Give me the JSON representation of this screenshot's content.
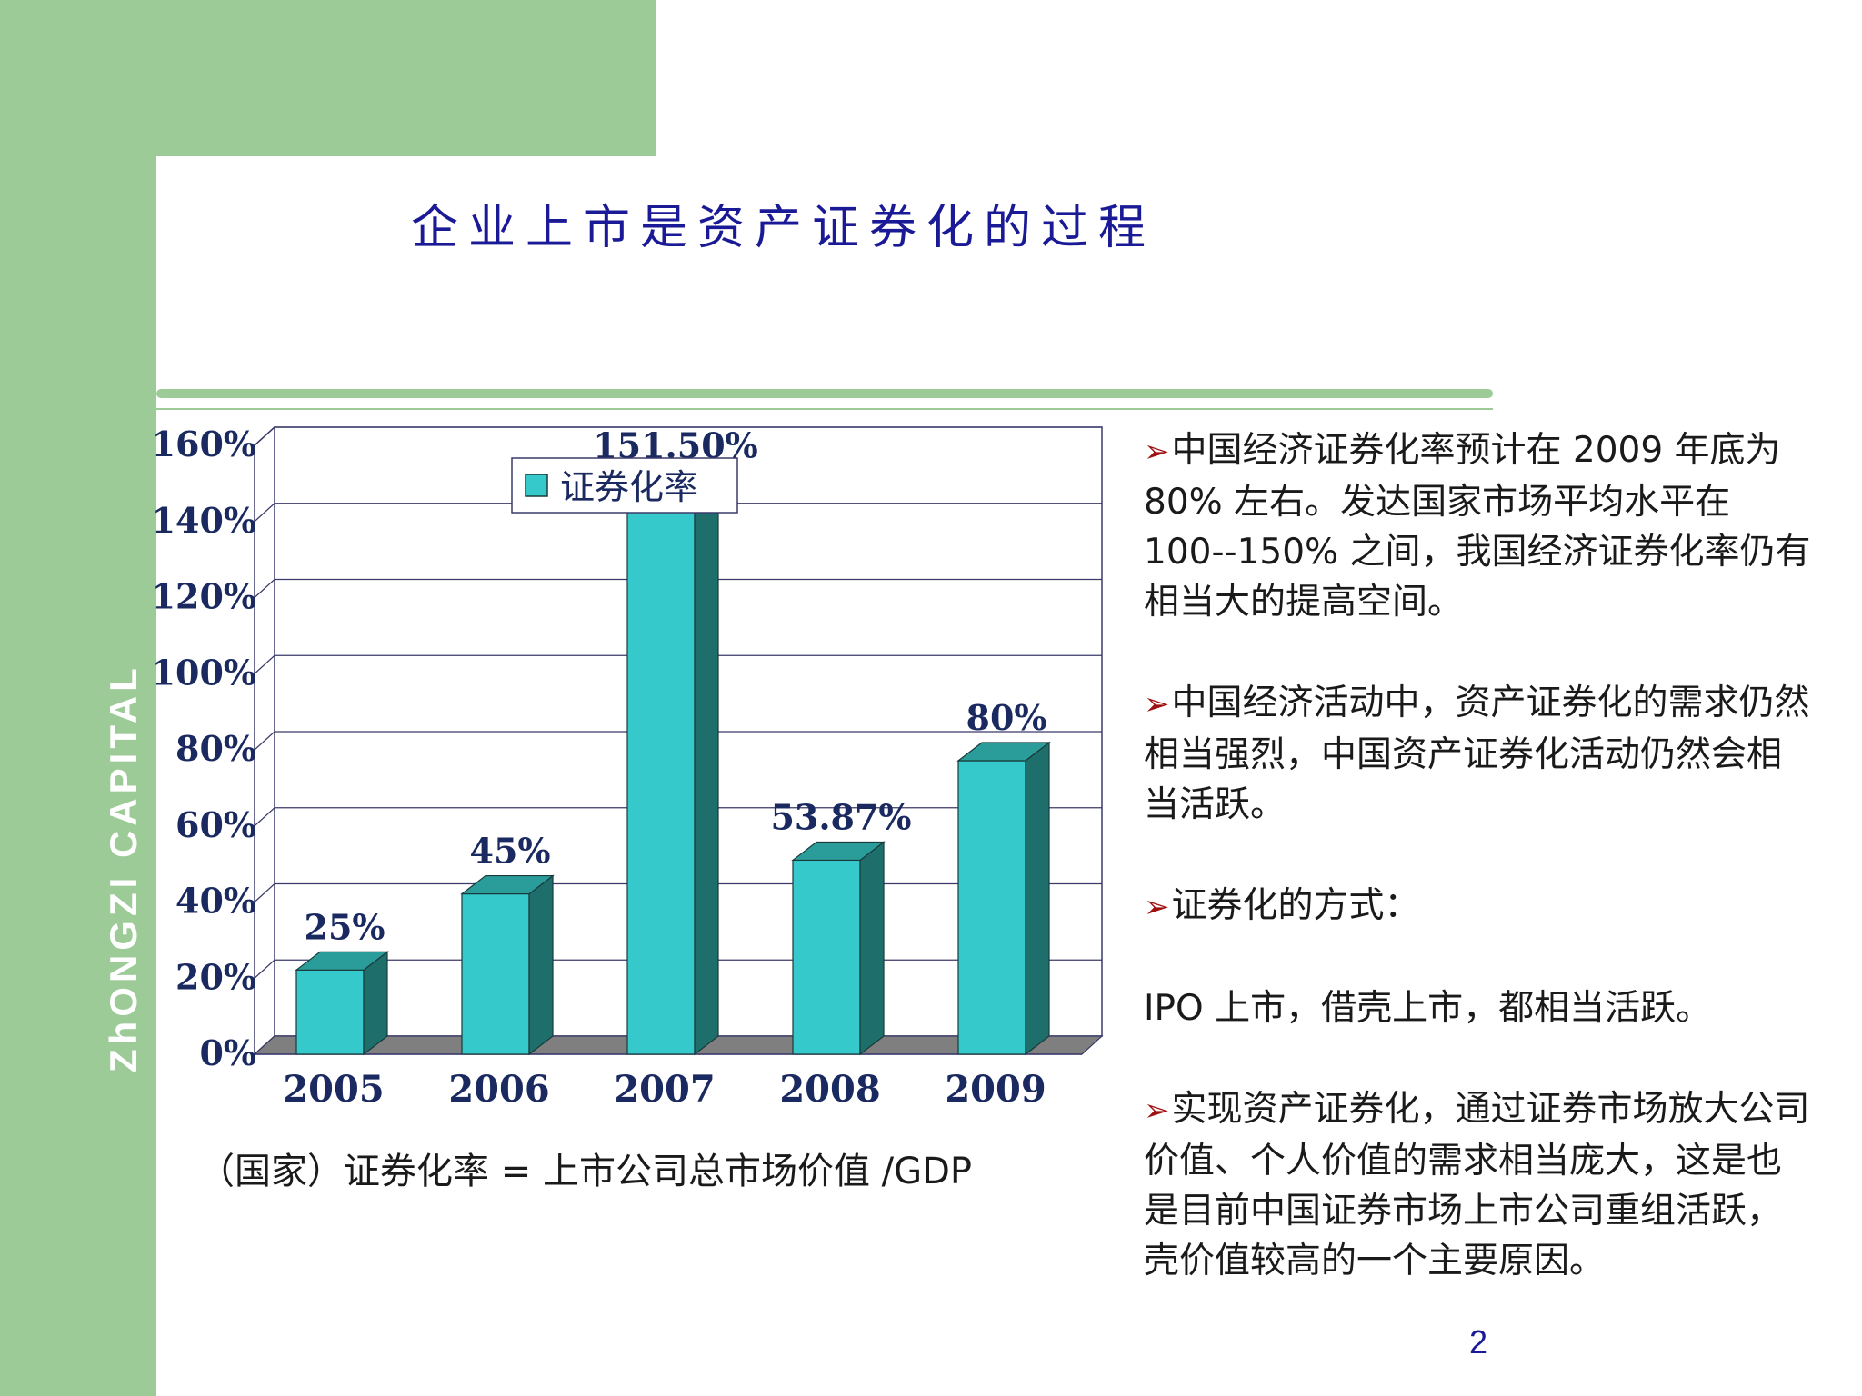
{
  "brand": "ZhONGZI CAPITAL",
  "title": "企业上市是资产证券化的过程",
  "formula": "（国家）证券化率 = 上市公司总市场价值 /GDP",
  "page_number": "2",
  "bullets": [
    {
      "arrow": "➢",
      "text": "中国经济证券化率预计在 2009 年底为 80% 左右。发达国家市场平均水平在 100--150% 之间，我国经济证券化率仍有相当大的提高空间。"
    },
    {
      "arrow": "➢",
      "text": "中国经济活动中，资产证券化的需求仍然相当强烈，中国资产证券化活动仍然会相当活跃。"
    },
    {
      "arrow": "➢",
      "text": "证券化的方式："
    },
    {
      "arrow": "",
      "text": "IPO 上市，借壳上市，都相当活跃。"
    },
    {
      "arrow": "➢",
      "text": "实现资产证券化，通过证券市场放大公司价值、个人价值的需求相当庞大，这是也是目前中国证券市场上市公司重组活跃，壳价值较高的一个主要原因。"
    }
  ],
  "chart_data": {
    "type": "bar",
    "categories": [
      "2005",
      "2006",
      "2007",
      "2008",
      "2009"
    ],
    "series": [
      {
        "name": "证券化率",
        "values": [
          25,
          45,
          151.5,
          53.87,
          80
        ],
        "labels": [
          "25%",
          "45%",
          "151.50%",
          "53.87%",
          "80%"
        ]
      }
    ],
    "ylim": [
      0,
      160
    ],
    "yticks": [
      "0%",
      "20%",
      "40%",
      "60%",
      "80%",
      "100%",
      "120%",
      "140%",
      "160%"
    ],
    "legend_position": "top",
    "grid": true,
    "colors": {
      "bar_front": "#36c9cc",
      "bar_side": "#1e6e6c",
      "bar_top": "#2a9c9a",
      "floor": "#7f7f7f",
      "label": "#1a2a60"
    }
  }
}
